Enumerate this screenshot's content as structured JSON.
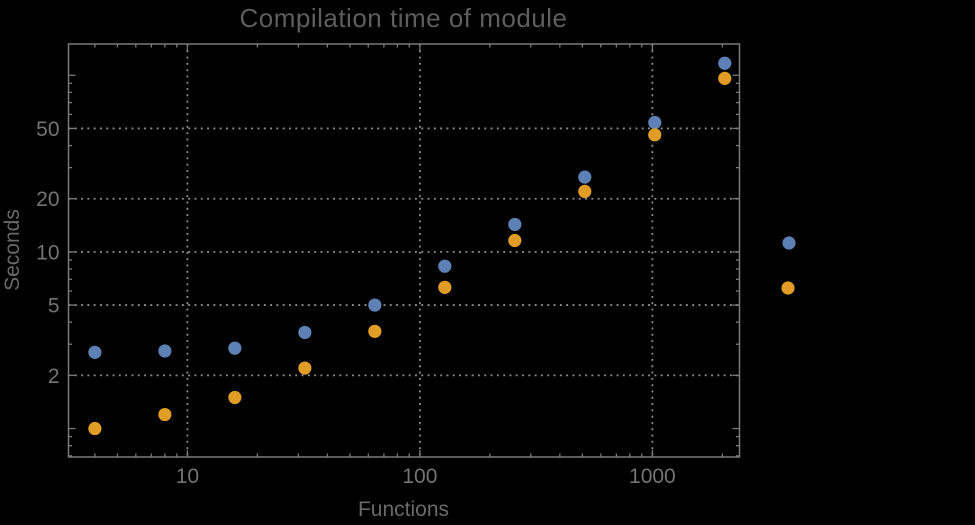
{
  "title": "Compilation time of module",
  "chart_data": {
    "type": "scatter",
    "title": "Compilation time of module",
    "xlabel": "Functions",
    "ylabel": "Seconds",
    "log_x": true,
    "log_y": true,
    "xlim": [
      3.08,
      2370
    ],
    "ylim": [
      0.69,
      150.3
    ],
    "grid": true,
    "legend_position": "right-outside",
    "x_major_ticks": [
      {
        "value": 10,
        "label": "10"
      },
      {
        "value": 100,
        "label": "100"
      },
      {
        "value": 1000,
        "label": "1000"
      }
    ],
    "y_major_ticks": [
      {
        "value": 1,
        "label": ""
      },
      {
        "value": 2,
        "label": "2"
      },
      {
        "value": 5,
        "label": "5"
      },
      {
        "value": 10,
        "label": "10"
      },
      {
        "value": 20,
        "label": "20"
      },
      {
        "value": 50,
        "label": "50"
      },
      {
        "value": 100,
        "label": ""
      }
    ],
    "x_gridlines": [
      10,
      100,
      1000
    ],
    "y_gridlines": [
      2,
      5,
      10,
      20,
      50
    ],
    "x": [
      4,
      8,
      16,
      32,
      64,
      128,
      256,
      512,
      1024,
      2048
    ],
    "series": [
      {
        "name": "series-1-blue",
        "color": "#5e81b5",
        "values": [
          2.7,
          2.75,
          2.85,
          3.5,
          5.0,
          8.3,
          14.3,
          26.5,
          54,
          117
        ]
      },
      {
        "name": "series-2-orange",
        "color": "#e09c24",
        "values": [
          1.0,
          1.2,
          1.5,
          2.2,
          3.55,
          6.3,
          11.6,
          22,
          46,
          96
        ]
      }
    ]
  },
  "legend": {
    "markers": [
      {
        "name": "legend-marker-blue",
        "color": "#5e81b5"
      },
      {
        "name": "legend-marker-orange",
        "color": "#e09c24"
      }
    ]
  },
  "colors": {
    "background": "#000000",
    "frame": "#7a7a7a",
    "grid": "#8f8f8f",
    "tick_label": "#747474",
    "title_text": "#5e5e5e",
    "axis_label": "#696969",
    "series_blue": "#5e81b5",
    "series_orange": "#e09c24"
  }
}
